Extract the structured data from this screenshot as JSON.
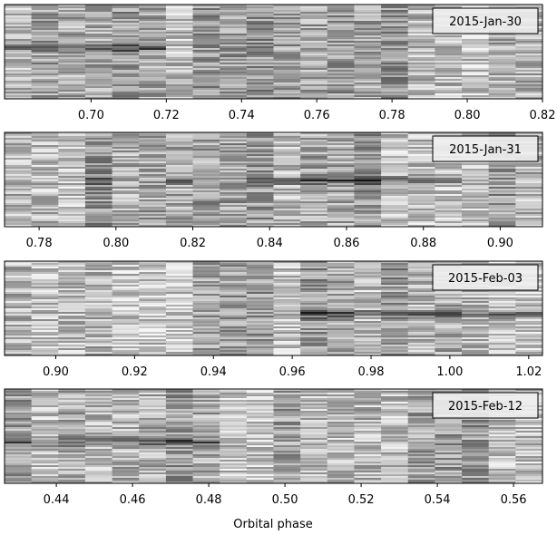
{
  "chart_data": [
    {
      "type": "heatmap",
      "label": "2015-Jan-30",
      "xlim": [
        0.677,
        0.82
      ],
      "xticks": [
        {
          "value": 0.7,
          "label": "0.70"
        },
        0.72,
        0.74,
        0.76,
        0.78,
        {
          "value": 0.8,
          "label": "0.80"
        },
        0.82
      ]
    },
    {
      "type": "heatmap",
      "label": "2015-Jan-31",
      "xlim": [
        0.771,
        0.911
      ],
      "xticks": [
        0.78,
        {
          "value": 0.8,
          "label": "0.80"
        },
        0.82,
        0.84,
        0.86,
        0.88,
        {
          "value": 0.9,
          "label": "0.90"
        }
      ]
    },
    {
      "type": "heatmap",
      "label": "2015-Feb-03",
      "xlim": [
        0.887,
        1.0235
      ],
      "xticks": [
        {
          "value": 0.9,
          "label": "0.90"
        },
        0.92,
        0.94,
        0.96,
        0.98,
        {
          "value": 1.0,
          "label": "1.00"
        },
        1.02
      ]
    },
    {
      "type": "heatmap",
      "label": "2015-Feb-12",
      "xlim": [
        0.4264,
        0.5676
      ],
      "xlabel": "Orbital phase",
      "xticks": [
        0.44,
        0.46,
        0.48,
        {
          "value": 0.5,
          "label": "0.50"
        },
        0.52,
        0.54,
        0.56
      ]
    }
  ]
}
